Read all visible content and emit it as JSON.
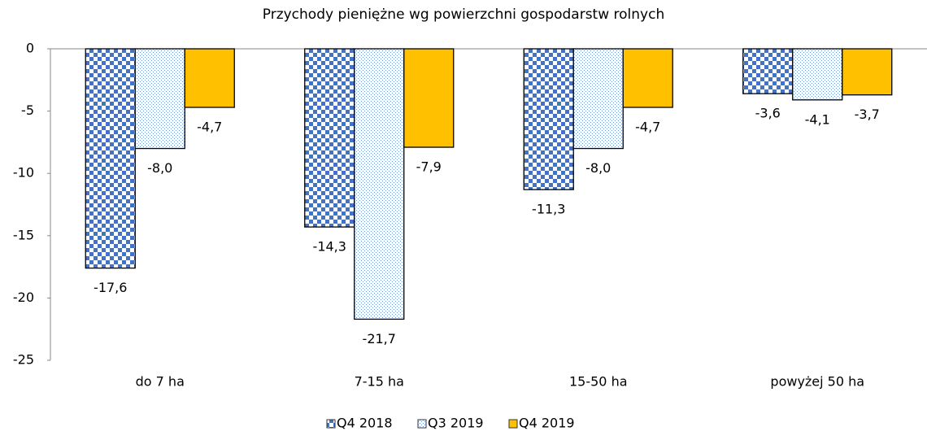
{
  "chart_data": {
    "type": "bar",
    "title": "Przychody pieniężne wg powierzchni gospodarstw rolnych",
    "categories": [
      "do 7 ha",
      "7-15 ha",
      "15-50 ha",
      "powyżej 50 ha"
    ],
    "series": [
      {
        "name": "Q4 2018",
        "color": "#4472c4",
        "pattern": "checker",
        "values": [
          -17.6,
          -14.3,
          -11.3,
          -3.6
        ],
        "value_labels": [
          "-17,6",
          "-14,3",
          "-11,3",
          "-3,6"
        ]
      },
      {
        "name": "Q3 2019",
        "color": "#4472c4",
        "pattern": "dots",
        "values": [
          -8.0,
          -21.7,
          -8.0,
          -4.1
        ],
        "value_labels": [
          "-8,0",
          "-21,7",
          "-8,0",
          "-4,1"
        ]
      },
      {
        "name": "Q4 2019",
        "color": "#ffc000",
        "pattern": "solid",
        "values": [
          -4.7,
          -7.9,
          -4.7,
          -3.7
        ],
        "value_labels": [
          "-4,7",
          "-7,9",
          "-4,7",
          "-3,7"
        ]
      }
    ],
    "ylim": [
      -25,
      0
    ],
    "yticks": [
      0,
      -5,
      -10,
      -15,
      -20,
      -25
    ],
    "legend": "bottom"
  }
}
